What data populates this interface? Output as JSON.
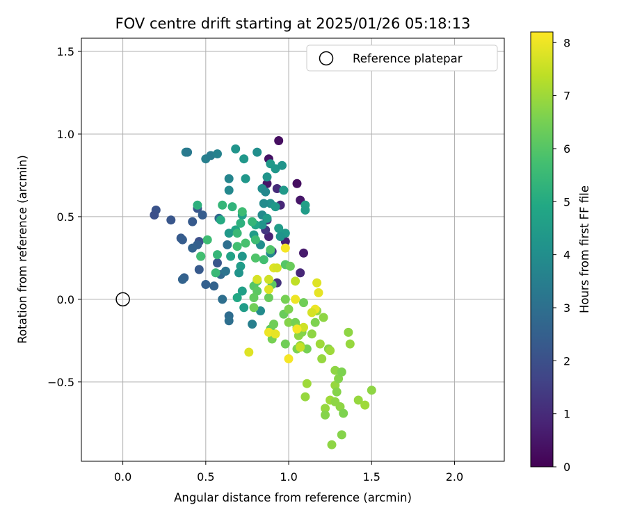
{
  "chart_data": {
    "type": "scatter",
    "title": "FOV centre drift starting at 2025/01/26 05:18:13",
    "xlabel": "Angular distance from reference (arcmin)",
    "ylabel": "Rotation from reference (arcmin)",
    "xlim": [
      -0.25,
      2.3
    ],
    "ylim": [
      -0.98,
      1.58
    ],
    "xticks": [
      "0.0",
      "0.5",
      "1.0",
      "1.5",
      "2.0"
    ],
    "yticks": [
      "−0.5",
      "0.0",
      "0.5",
      "1.0",
      "1.5"
    ],
    "grid": true,
    "colormap": "viridis",
    "colorbar": {
      "label": "Hours from first FF file",
      "min": 0,
      "max": 8.2,
      "ticks": [
        "0",
        "1",
        "2",
        "3",
        "4",
        "5",
        "6",
        "7",
        "8"
      ]
    },
    "legend": {
      "position": "top-right",
      "entries": [
        "Reference platepar"
      ]
    },
    "reference_point": {
      "x": 0.0,
      "y": 0.0
    },
    "points": [
      [
        0.94,
        0.96,
        0.3
      ],
      [
        0.88,
        0.85,
        0.4
      ],
      [
        0.87,
        0.7,
        0.5
      ],
      [
        0.93,
        0.67,
        1.0
      ],
      [
        1.05,
        0.7,
        0.3
      ],
      [
        1.07,
        0.6,
        0.5
      ],
      [
        0.95,
        0.57,
        0.9
      ],
      [
        0.87,
        0.48,
        1.1
      ],
      [
        0.88,
        0.38,
        0.8
      ],
      [
        0.86,
        0.42,
        1.3
      ],
      [
        0.98,
        0.35,
        0.7
      ],
      [
        1.09,
        0.28,
        0.6
      ],
      [
        1.07,
        0.16,
        0.9
      ],
      [
        0.93,
        0.1,
        1.2
      ],
      [
        0.9,
        0.29,
        1.4
      ],
      [
        0.2,
        0.54,
        2.1
      ],
      [
        0.19,
        0.51,
        2.0
      ],
      [
        0.29,
        0.48,
        2.2
      ],
      [
        0.35,
        0.37,
        2.3
      ],
      [
        0.36,
        0.36,
        2.4
      ],
      [
        0.42,
        0.47,
        2.3
      ],
      [
        0.45,
        0.55,
        2.2
      ],
      [
        0.48,
        0.51,
        2.4
      ],
      [
        0.46,
        0.35,
        2.0
      ],
      [
        0.45,
        0.33,
        2.5
      ],
      [
        0.42,
        0.31,
        2.6
      ],
      [
        0.46,
        0.18,
        2.3
      ],
      [
        0.47,
        0.26,
        2.1
      ],
      [
        0.37,
        0.13,
        2.5
      ],
      [
        0.36,
        0.12,
        2.6
      ],
      [
        0.5,
        0.09,
        2.5
      ],
      [
        0.55,
        0.08,
        2.6
      ],
      [
        0.59,
        0.15,
        2.8
      ],
      [
        0.57,
        0.22,
        2.2
      ],
      [
        0.6,
        0.0,
        3.0
      ],
      [
        0.64,
        -0.1,
        2.9
      ],
      [
        0.64,
        -0.13,
        3.0
      ],
      [
        0.62,
        0.17,
        3.1
      ],
      [
        0.58,
        0.49,
        2.8
      ],
      [
        0.63,
        0.33,
        3.0
      ],
      [
        0.38,
        0.89,
        3.5
      ],
      [
        0.39,
        0.89,
        3.3
      ],
      [
        0.5,
        0.85,
        3.5
      ],
      [
        0.53,
        0.87,
        3.4
      ],
      [
        0.57,
        0.88,
        3.6
      ],
      [
        0.64,
        0.73,
        3.7
      ],
      [
        0.64,
        0.66,
        3.8
      ],
      [
        0.68,
        0.91,
        4.2
      ],
      [
        0.73,
        0.85,
        4.3
      ],
      [
        0.74,
        0.73,
        4.3
      ],
      [
        0.81,
        0.89,
        4.0
      ],
      [
        0.87,
        0.74,
        4.2
      ],
      [
        0.89,
        0.82,
        4.4
      ],
      [
        0.92,
        0.79,
        4.3
      ],
      [
        0.96,
        0.81,
        4.2
      ],
      [
        0.84,
        0.67,
        4.0
      ],
      [
        0.86,
        0.65,
        3.8
      ],
      [
        0.89,
        0.58,
        4.1
      ],
      [
        0.85,
        0.58,
        3.9
      ],
      [
        1.1,
        0.57,
        4.6
      ],
      [
        1.1,
        0.54,
        4.5
      ],
      [
        0.97,
        0.66,
        4.4
      ],
      [
        0.84,
        0.51,
        3.9
      ],
      [
        0.84,
        0.45,
        4.2
      ],
      [
        0.94,
        0.43,
        4.5
      ],
      [
        0.98,
        0.4,
        4.4
      ],
      [
        0.95,
        0.38,
        4.2
      ],
      [
        0.89,
        0.28,
        3.8
      ],
      [
        0.83,
        0.33,
        4.0
      ],
      [
        0.72,
        0.26,
        4.3
      ],
      [
        0.71,
        0.2,
        4.5
      ],
      [
        0.7,
        0.16,
        4.2
      ],
      [
        0.72,
        0.05,
        4.6
      ],
      [
        0.73,
        -0.05,
        4.5
      ],
      [
        0.78,
        -0.15,
        3.5
      ],
      [
        0.83,
        -0.07,
        3.9
      ],
      [
        0.68,
        0.42,
        4.8
      ],
      [
        0.64,
        0.4,
        4.4
      ],
      [
        0.65,
        0.26,
        4.7
      ],
      [
        0.72,
        0.51,
        4.6
      ],
      [
        0.79,
        0.39,
        4.5
      ],
      [
        0.8,
        0.45,
        4.8
      ],
      [
        0.92,
        0.56,
        4.4
      ],
      [
        0.87,
        0.49,
        4.5
      ],
      [
        0.69,
        0.01,
        4.9
      ],
      [
        0.45,
        0.57,
        5.2
      ],
      [
        0.6,
        0.57,
        5.4
      ],
      [
        0.66,
        0.56,
        5.3
      ],
      [
        0.59,
        0.48,
        5.0
      ],
      [
        0.71,
        0.46,
        5.2
      ],
      [
        0.72,
        0.53,
        5.6
      ],
      [
        0.78,
        0.47,
        5.4
      ],
      [
        0.51,
        0.36,
        5.6
      ],
      [
        0.57,
        0.27,
        5.4
      ],
      [
        0.47,
        0.26,
        5.7
      ],
      [
        0.56,
        0.16,
        5.5
      ],
      [
        0.69,
        0.32,
        5.7
      ],
      [
        0.69,
        0.4,
        5.5
      ],
      [
        0.74,
        0.34,
        5.8
      ],
      [
        0.8,
        0.36,
        5.6
      ],
      [
        0.8,
        0.25,
        5.9
      ],
      [
        0.85,
        0.24,
        5.7
      ],
      [
        0.89,
        0.3,
        5.9
      ],
      [
        0.98,
        0.21,
        6.0
      ],
      [
        1.01,
        0.2,
        6.3
      ],
      [
        0.81,
        0.11,
        6.2
      ],
      [
        0.79,
        0.08,
        6.0
      ],
      [
        0.81,
        0.05,
        6.1
      ],
      [
        0.79,
        0.01,
        6.2
      ],
      [
        0.79,
        -0.05,
        6.4
      ],
      [
        0.9,
        0.09,
        6.1
      ],
      [
        0.88,
        0.01,
        6.3
      ],
      [
        0.89,
        -0.18,
        6.2
      ],
      [
        0.9,
        -0.24,
        6.5
      ],
      [
        0.91,
        -0.15,
        6.4
      ],
      [
        0.97,
        -0.09,
        6.3
      ],
      [
        0.98,
        0.0,
        6.5
      ],
      [
        0.98,
        -0.27,
        6.4
      ],
      [
        1.0,
        -0.06,
        6.6
      ],
      [
        1.0,
        -0.14,
        6.7
      ],
      [
        1.04,
        -0.14,
        6.5
      ],
      [
        1.05,
        -0.17,
        6.6
      ],
      [
        1.06,
        -0.22,
        6.8
      ],
      [
        1.08,
        -0.2,
        6.7
      ],
      [
        1.05,
        -0.3,
        6.6
      ],
      [
        1.07,
        -0.28,
        6.9
      ],
      [
        1.09,
        -0.02,
        6.4
      ],
      [
        1.11,
        -0.3,
        6.5
      ],
      [
        1.14,
        -0.21,
        6.8
      ],
      [
        1.16,
        -0.14,
        6.6
      ],
      [
        1.17,
        -0.07,
        6.9
      ],
      [
        1.21,
        -0.11,
        6.8
      ],
      [
        1.19,
        -0.27,
        7.0
      ],
      [
        1.2,
        -0.36,
        6.9
      ],
      [
        1.24,
        -0.3,
        6.7
      ],
      [
        1.28,
        -0.43,
        6.8
      ],
      [
        1.25,
        -0.31,
        7.0
      ],
      [
        1.28,
        -0.52,
        6.9
      ],
      [
        1.3,
        -0.48,
        6.7
      ],
      [
        1.32,
        -0.44,
        6.6
      ],
      [
        1.36,
        -0.2,
        6.8
      ],
      [
        1.37,
        -0.27,
        6.9
      ],
      [
        1.29,
        -0.56,
        6.7
      ],
      [
        1.25,
        -0.61,
        7.0
      ],
      [
        1.28,
        -0.62,
        6.8
      ],
      [
        1.22,
        -0.66,
        6.9
      ],
      [
        1.22,
        -0.7,
        6.7
      ],
      [
        1.31,
        -0.65,
        6.8
      ],
      [
        1.33,
        -0.69,
        6.6
      ],
      [
        1.26,
        -0.88,
        6.8
      ],
      [
        1.32,
        -0.82,
        6.7
      ],
      [
        1.42,
        -0.61,
        6.9
      ],
      [
        1.46,
        -0.64,
        7.0
      ],
      [
        1.5,
        -0.55,
        6.8
      ],
      [
        1.11,
        -0.51,
        7.0
      ],
      [
        1.1,
        -0.59,
        6.9
      ],
      [
        0.91,
        0.19,
        7.8
      ],
      [
        0.93,
        0.19,
        7.7
      ],
      [
        0.98,
        0.31,
        8.1
      ],
      [
        0.88,
        0.12,
        7.6
      ],
      [
        0.88,
        0.06,
        7.8
      ],
      [
        0.81,
        0.12,
        7.7
      ],
      [
        1.04,
        0.11,
        7.4
      ],
      [
        1.04,
        0.0,
        8.0
      ],
      [
        1.16,
        -0.06,
        8.0
      ],
      [
        1.18,
        0.04,
        7.9
      ],
      [
        1.17,
        0.1,
        7.8
      ],
      [
        1.14,
        -0.08,
        7.7
      ],
      [
        1.09,
        -0.17,
        7.6
      ],
      [
        1.05,
        -0.18,
        8.1
      ],
      [
        0.88,
        -0.2,
        8.0
      ],
      [
        0.92,
        -0.21,
        7.9
      ],
      [
        0.76,
        -0.32,
        7.8
      ],
      [
        1.0,
        -0.36,
        8.1
      ],
      [
        1.07,
        -0.29,
        7.5
      ]
    ]
  }
}
